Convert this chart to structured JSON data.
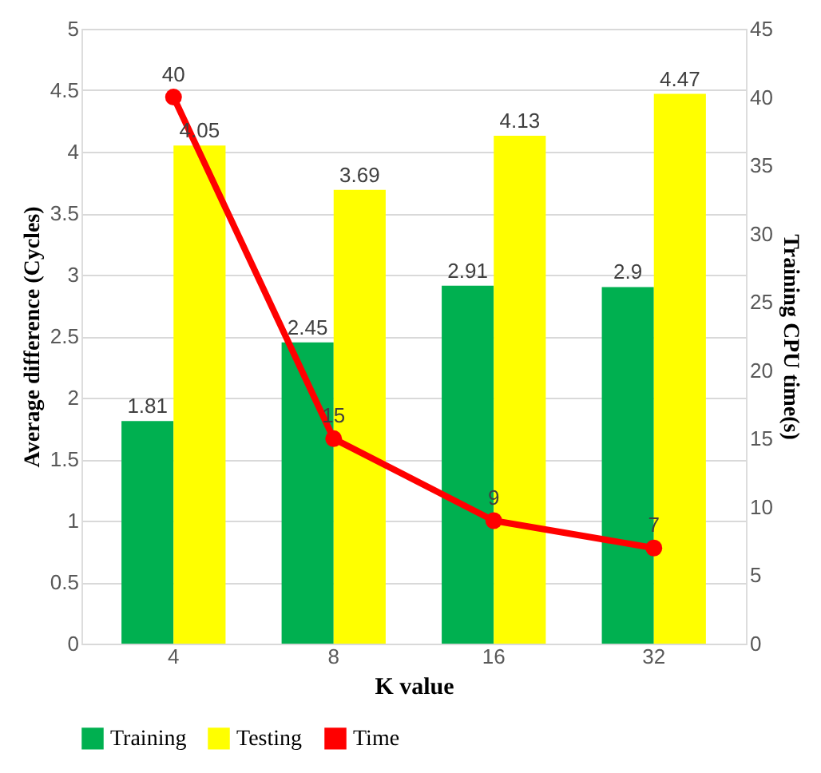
{
  "chart_data": {
    "type": "bar",
    "xlabel": "K value",
    "ylabel": "Average difference (Cycles)",
    "y2label": "Training CPU time(s)",
    "categories": [
      "4",
      "8",
      "16",
      "32"
    ],
    "series": [
      {
        "name": "Training",
        "color": "#00b050",
        "values": [
          1.81,
          2.45,
          2.91,
          2.9
        ]
      },
      {
        "name": "Testing",
        "color": "#ffff00",
        "values": [
          4.05,
          3.69,
          4.13,
          4.47
        ]
      },
      {
        "name": "Time",
        "type": "line",
        "axis": "y2",
        "color": "#ff0000",
        "values": [
          40,
          15,
          9,
          7
        ],
        "marker": "circle",
        "line_style": "solid"
      }
    ],
    "ylim": [
      0,
      5
    ],
    "yticks": [
      0,
      0.5,
      1,
      1.5,
      2,
      2.5,
      3,
      3.5,
      4,
      4.5,
      5
    ],
    "y2lim": [
      0,
      45
    ],
    "y2ticks": [
      0,
      5,
      10,
      15,
      20,
      25,
      30,
      35,
      40,
      45
    ],
    "data_labels": true,
    "grid": "y",
    "legend": "bottom"
  }
}
